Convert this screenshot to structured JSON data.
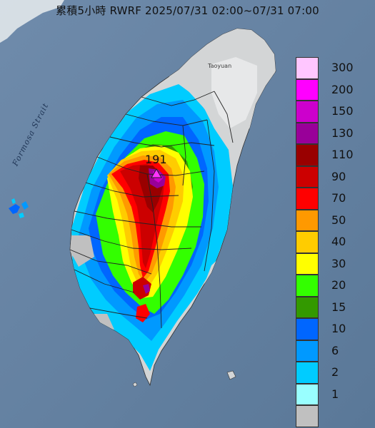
{
  "title": "累積5小時 RWRF 2025/07/31 02:00~07/31 07:00",
  "strait_label": "Formosa Strait",
  "city_label": "Taoyuan",
  "max_value_label": "191",
  "legend": {
    "levels": [
      {
        "label": "300",
        "color": "#ffc6ff"
      },
      {
        "label": "200",
        "color": "#ff00ff"
      },
      {
        "label": "150",
        "color": "#cc00cc"
      },
      {
        "label": "130",
        "color": "#990099"
      },
      {
        "label": "110",
        "color": "#990000"
      },
      {
        "label": "90",
        "color": "#cc0000"
      },
      {
        "label": "70",
        "color": "#ff0000"
      },
      {
        "label": "50",
        "color": "#ff9900"
      },
      {
        "label": "40",
        "color": "#ffcc00"
      },
      {
        "label": "30",
        "color": "#ffff00"
      },
      {
        "label": "20",
        "color": "#33ff00"
      },
      {
        "label": "15",
        "color": "#339900"
      },
      {
        "label": "10",
        "color": "#0066ff"
      },
      {
        "label": "6",
        "color": "#0099ff"
      },
      {
        "label": "2",
        "color": "#00ccff"
      },
      {
        "label": "1",
        "color": "#99ffff"
      },
      {
        "label": "",
        "color": "#c0c0c0"
      }
    ]
  },
  "colors": {
    "sea": "#5f7d9e",
    "land": "#d3d5d6",
    "boundary": "#222222"
  },
  "icons": {
    "max_marker": "triangle-icon"
  }
}
